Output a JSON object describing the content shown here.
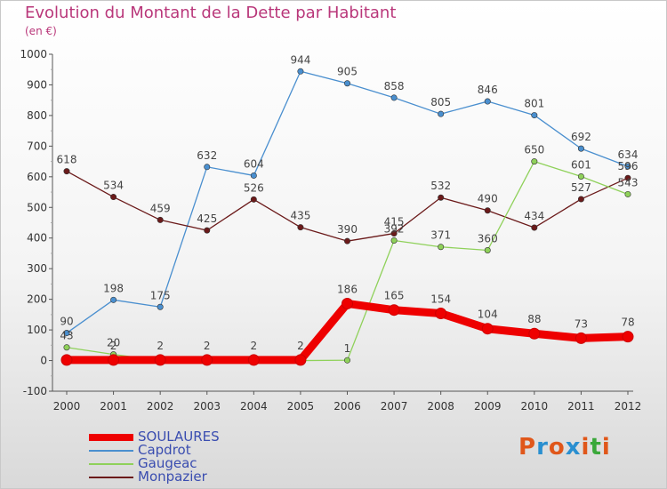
{
  "header": {
    "title": "Evolution du Montant de la Dette par Habitant",
    "unit": "(en €)"
  },
  "logo": {
    "text": "Proxiti",
    "colors": [
      "#e0571a",
      "#2a8fd0",
      "#e0571a",
      "#2a8fd0",
      "#e0571a",
      "#3aa83a",
      "#e0571a"
    ]
  },
  "chart_data": {
    "type": "line",
    "title": "Evolution du Montant de la Dette par Habitant",
    "subtitle": "(en €)",
    "xlabel": "",
    "ylabel": "",
    "x": [
      "2000",
      "2001",
      "2002",
      "2003",
      "2004",
      "2005",
      "2006",
      "2007",
      "2008",
      "2009",
      "2010",
      "2011",
      "2012"
    ],
    "ylim": [
      -100,
      1000
    ],
    "yticks": [
      "-100",
      "0",
      "100",
      "200",
      "300",
      "400",
      "500",
      "600",
      "700",
      "800",
      "900",
      "1000"
    ],
    "grid": false,
    "legend_position": "bottom-left",
    "series": [
      {
        "name": "Capdrot",
        "color": "#4a8fcf",
        "values": [
          90,
          198,
          175,
          632,
          604,
          944,
          905,
          858,
          805,
          846,
          801,
          692,
          634
        ],
        "labels": [
          "90",
          "198",
          "175",
          "632",
          "604",
          "944",
          "905",
          "858",
          "805",
          "846",
          "801",
          "692",
          "634"
        ]
      },
      {
        "name": "Monpazier",
        "color": "#6b1a1a",
        "values": [
          618,
          534,
          459,
          425,
          526,
          435,
          390,
          415,
          532,
          490,
          434,
          527,
          596
        ],
        "labels": [
          "618",
          "534",
          "459",
          "425",
          "526",
          "435",
          "390",
          "415",
          "532",
          "490",
          "434",
          "527",
          "596"
        ]
      },
      {
        "name": "Gaugeac",
        "color": "#8fd15a",
        "values": [
          43,
          20,
          0,
          0,
          0,
          0,
          1,
          392,
          371,
          360,
          650,
          601,
          543
        ],
        "labels": [
          "43",
          "20",
          "",
          "",
          "",
          "",
          "1",
          "392",
          "371",
          "360",
          "650",
          "601",
          "543"
        ]
      },
      {
        "name": "SOULAURES",
        "color": "#ee0000",
        "values": [
          2,
          2,
          2,
          2,
          2,
          2,
          186,
          165,
          154,
          104,
          88,
          73,
          78
        ],
        "labels": [
          "",
          "2",
          "2",
          "2",
          "2",
          "2",
          "186",
          "165",
          "154",
          "104",
          "88",
          "73",
          "78"
        ]
      }
    ],
    "legend": [
      "SOULAURES",
      "Capdrot",
      "Gaugeac",
      "Monpazier"
    ]
  }
}
